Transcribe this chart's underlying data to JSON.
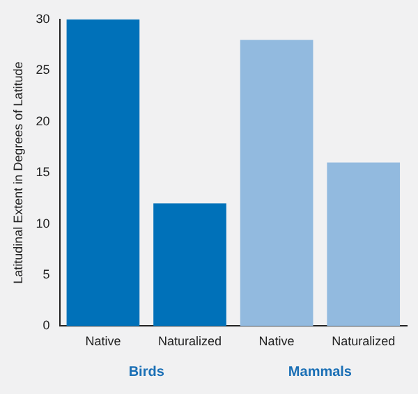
{
  "chart_data": {
    "type": "bar",
    "ylabel": "Latitudinal Extent in Degrees of Latitude",
    "categories": [
      "Native",
      "Naturalized",
      "Native",
      "Naturalized"
    ],
    "stacked": true,
    "series": [
      {
        "name": "Birds",
        "color": "#0071b9",
        "values": [
          30,
          12,
          null,
          null
        ]
      },
      {
        "name": "Mammals",
        "color": "#92badf",
        "values": [
          null,
          null,
          28,
          16
        ]
      }
    ],
    "ylim": [
      0,
      30
    ],
    "yticks": [
      0,
      5,
      10,
      15,
      20,
      25,
      30
    ],
    "grid": false,
    "legend": false
  }
}
